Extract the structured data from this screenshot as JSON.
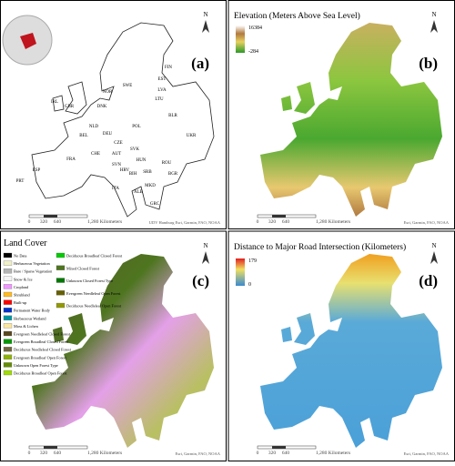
{
  "panels": [
    {
      "label": "(a)",
      "north": "N",
      "countries": [
        "FIN",
        "NOR",
        "SWE",
        "EST",
        "LVA",
        "LTU",
        "DNK",
        "IRL",
        "GBR",
        "NLD",
        "BEL",
        "DEU",
        "POL",
        "BLR",
        "UKR",
        "FRA",
        "CZE",
        "SVK",
        "AUT",
        "CHE",
        "HUN",
        "SVN",
        "HRV",
        "ROU",
        "BIH",
        "SRB",
        "BGR",
        "ITA",
        "MKD",
        "ALB",
        "GRC",
        "ESP",
        "PRT"
      ],
      "scale": [
        "0",
        "320",
        "640",
        "1,280 Kilometers"
      ],
      "credit": "UDV Hamburg Esri, Garmin, FAO, NOAA"
    },
    {
      "label": "(b)",
      "north": "N",
      "legend": {
        "title": "Elevation (Meters Above Sea Level)",
        "max": 16384,
        "min": -284
      },
      "scale": [
        "0",
        "320",
        "640",
        "1,280 Kilometers"
      ],
      "credit": "Esri, Garmin, FAO, NOAA"
    },
    {
      "label": "(c)",
      "north": "N",
      "legend": {
        "title": "Land Cover",
        "items": [
          {
            "name": "No Data",
            "color": "#000000"
          },
          {
            "name": "Herbaceous Vegetation",
            "color": "#f0f0c8"
          },
          {
            "name": "Bare / Sparse Vegetation",
            "color": "#b4b4b4"
          },
          {
            "name": "Snow & Ice",
            "color": "#f5f5f5"
          },
          {
            "name": "Cropland",
            "color": "#f096ff"
          },
          {
            "name": "Shrubland",
            "color": "#ffbb22"
          },
          {
            "name": "Built-up",
            "color": "#fa0000"
          },
          {
            "name": "Permanent Water Body",
            "color": "#0032c8"
          },
          {
            "name": "Herbaceous Wetland",
            "color": "#0096a0"
          },
          {
            "name": "Moss & Lichen",
            "color": "#fae6a0"
          },
          {
            "name": "Evergreen Needleleaf Closed Forest",
            "color": "#58481f"
          },
          {
            "name": "Evergreen Broadleaf Closed Forest",
            "color": "#009900"
          },
          {
            "name": "Deciduous Needleleaf Closed Forest",
            "color": "#70663e"
          },
          {
            "name": "Evergreen Broadleaf Open Forest",
            "color": "#8db400"
          },
          {
            "name": "Unknown Open Forest Type",
            "color": "#648c00"
          },
          {
            "name": "Deciduous Broadleaf Open Forest",
            "color": "#a0dc00"
          },
          {
            "name": "Deciduous Broadleaf Closed Forest",
            "color": "#00cc00"
          },
          {
            "name": "Mixed Closed Forest",
            "color": "#4e751f"
          },
          {
            "name": "Unknown Closed Forest Type",
            "color": "#007800"
          },
          {
            "name": "Evergreen Needleleaf Open Forest",
            "color": "#666000"
          },
          {
            "name": "Deciduous Needleleaf Open Forest",
            "color": "#929900"
          }
        ]
      },
      "scale": [
        "0",
        "320",
        "640",
        "1,280 Kilometers"
      ],
      "credit": "Esri, Garmin, FAO, NOAA"
    },
    {
      "label": "(d)",
      "north": "N",
      "legend": {
        "title": "Distance to Major Road Intersection (Kilometers)",
        "max": 179,
        "min": 0
      },
      "scale": [
        "0",
        "320",
        "640",
        "1,280 Kilometers"
      ],
      "credit": "Esri, Garmin, FAO, NOAA"
    }
  ]
}
